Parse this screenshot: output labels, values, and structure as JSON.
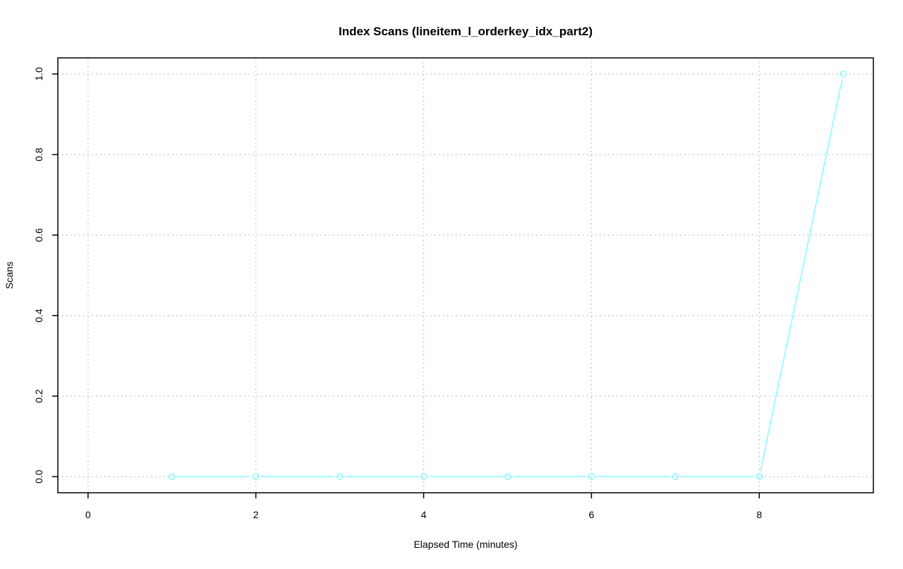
{
  "chart_data": {
    "type": "line",
    "title": "Index Scans (lineitem_l_orderkey_idx_part2)",
    "xlabel": "Elapsed Time (minutes)",
    "ylabel": "Scans",
    "x": [
      1,
      2,
      3,
      4,
      5,
      6,
      7,
      8,
      9
    ],
    "series": [
      {
        "values": [
          0,
          0,
          0,
          0,
          0,
          0,
          0,
          0,
          1
        ],
        "color": "#7fffff"
      }
    ],
    "xlim": [
      -0.36,
      9.36
    ],
    "ylim": [
      -0.04,
      1.04
    ],
    "xticks": [
      0,
      2,
      4,
      6,
      8
    ],
    "xtick_labels": [
      "0",
      "2",
      "4",
      "6",
      "8"
    ],
    "yticks": [
      0,
      0.2,
      0.4,
      0.6,
      0.8,
      1.0
    ],
    "ytick_labels": [
      "0.0",
      "0.2",
      "0.4",
      "0.6",
      "0.8",
      "1.0"
    ],
    "grid": true,
    "grid_color": "#c0c0c0",
    "marker": "open-circle"
  }
}
